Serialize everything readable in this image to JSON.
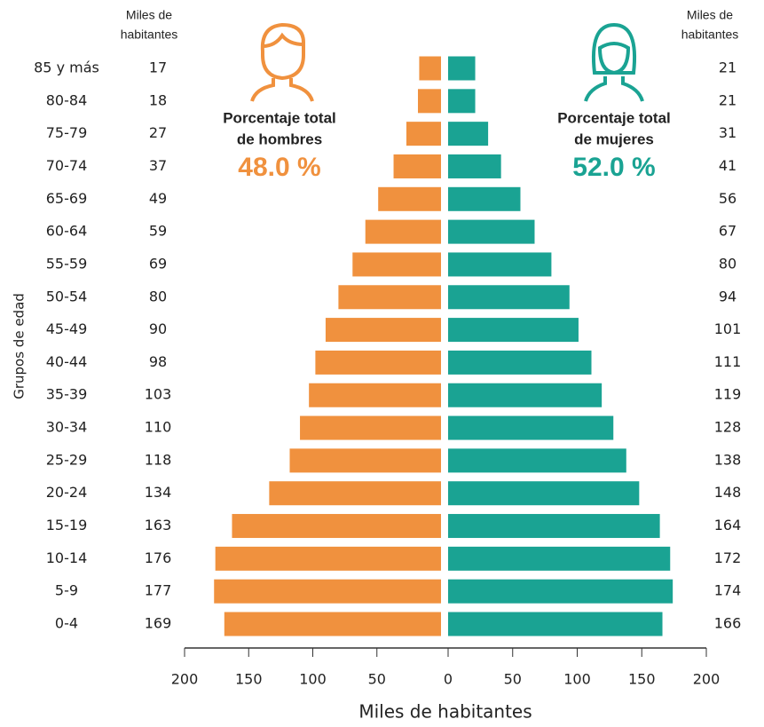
{
  "chart_data": {
    "type": "pyramid",
    "y_axis_label": "Grupos de edad",
    "x_axis_label": "Miles de habitantes",
    "left_header": [
      "Miles de",
      "habitantes"
    ],
    "right_header": [
      "Miles de",
      "habitantes"
    ],
    "men_caption": [
      "Porcentaje total",
      "de hombres"
    ],
    "men_percent": "48.0 %",
    "women_caption": [
      "Porcentaje total",
      "de mujeres"
    ],
    "women_percent": "52.0 %",
    "categories": [
      "85 y más",
      "80-84",
      "75-79",
      "70-74",
      "65-69",
      "60-64",
      "55-59",
      "50-54",
      "45-49",
      "40-44",
      "35-39",
      "30-34",
      "25-29",
      "20-24",
      "15-19",
      "10-14",
      "5-9",
      "0-4"
    ],
    "series": [
      {
        "name": "Hombres",
        "color": "#f0913e",
        "side": "left",
        "values": [
          17,
          18,
          27,
          37,
          49,
          59,
          69,
          80,
          90,
          98,
          103,
          110,
          118,
          134,
          163,
          176,
          177,
          169
        ]
      },
      {
        "name": "Mujeres",
        "color": "#1aa393",
        "side": "right",
        "values": [
          21,
          21,
          31,
          41,
          56,
          67,
          80,
          94,
          101,
          111,
          119,
          128,
          138,
          148,
          164,
          172,
          174,
          166
        ]
      }
    ],
    "xlim_left": [
      200,
      0
    ],
    "xticks_left": [
      200,
      150,
      100,
      50
    ],
    "xlim_right": [
      0,
      200
    ],
    "xticks_right": [
      0,
      50,
      100,
      150,
      200
    ]
  }
}
